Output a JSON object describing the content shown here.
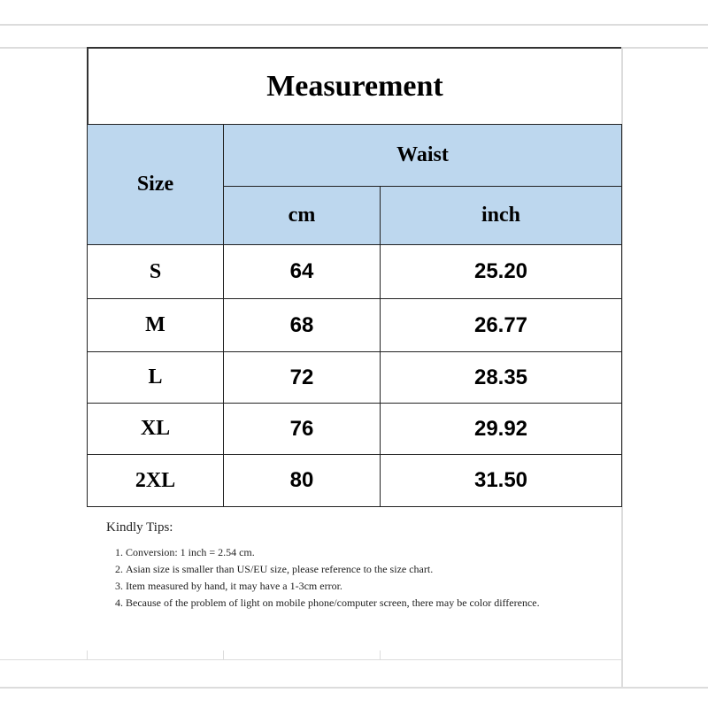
{
  "title": "Measurement",
  "header": {
    "size": "Size",
    "waist": "Waist",
    "cm": "cm",
    "inch": "inch"
  },
  "rows": [
    {
      "size": "S",
      "cm": "64",
      "inch": "25.20"
    },
    {
      "size": "M",
      "cm": "68",
      "inch": "26.77"
    },
    {
      "size": "L",
      "cm": "72",
      "inch": "28.35"
    },
    {
      "size": "XL",
      "cm": "76",
      "inch": "29.92"
    },
    {
      "size": "2XL",
      "cm": "80",
      "inch": "31.50"
    }
  ],
  "tips": {
    "heading": "Kindly Tips:",
    "items": [
      "Conversion: 1 inch = 2.54 cm.",
      "Asian size is smaller than US/EU size, please reference to the size chart.",
      "Item measured by hand, it may have a 1-3cm error.",
      "Because of the problem of light on mobile phone/computer screen, there may be color difference."
    ]
  },
  "colors": {
    "header_bg": "#bdd7ee"
  }
}
